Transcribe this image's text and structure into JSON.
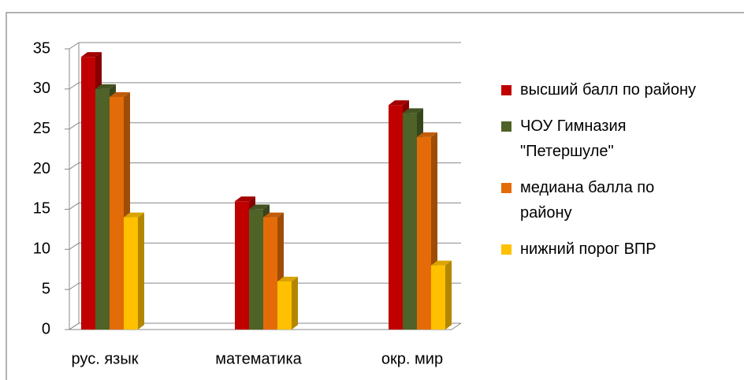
{
  "chart_data": {
    "type": "bar3d",
    "categories": [
      "рус. язык",
      "математика",
      "окр. мир"
    ],
    "series": [
      {
        "name": "высший балл по району",
        "color": "#c00000",
        "values": [
          34,
          16,
          28
        ]
      },
      {
        "name": "ЧОУ Гимназия \"Петершуле\"",
        "color": "#4f6228",
        "values": [
          30,
          15,
          27
        ]
      },
      {
        "name": "медиана балла по району",
        "color": "#e36c09",
        "values": [
          29,
          14,
          24
        ]
      },
      {
        "name": "нижний порог ВПР",
        "color": "#ffc000",
        "values": [
          14,
          6,
          8
        ]
      }
    ],
    "ylim": [
      0,
      35
    ],
    "yticks": [
      0,
      5,
      10,
      15,
      20,
      25,
      30,
      35
    ],
    "grid": true,
    "legend": "right"
  }
}
